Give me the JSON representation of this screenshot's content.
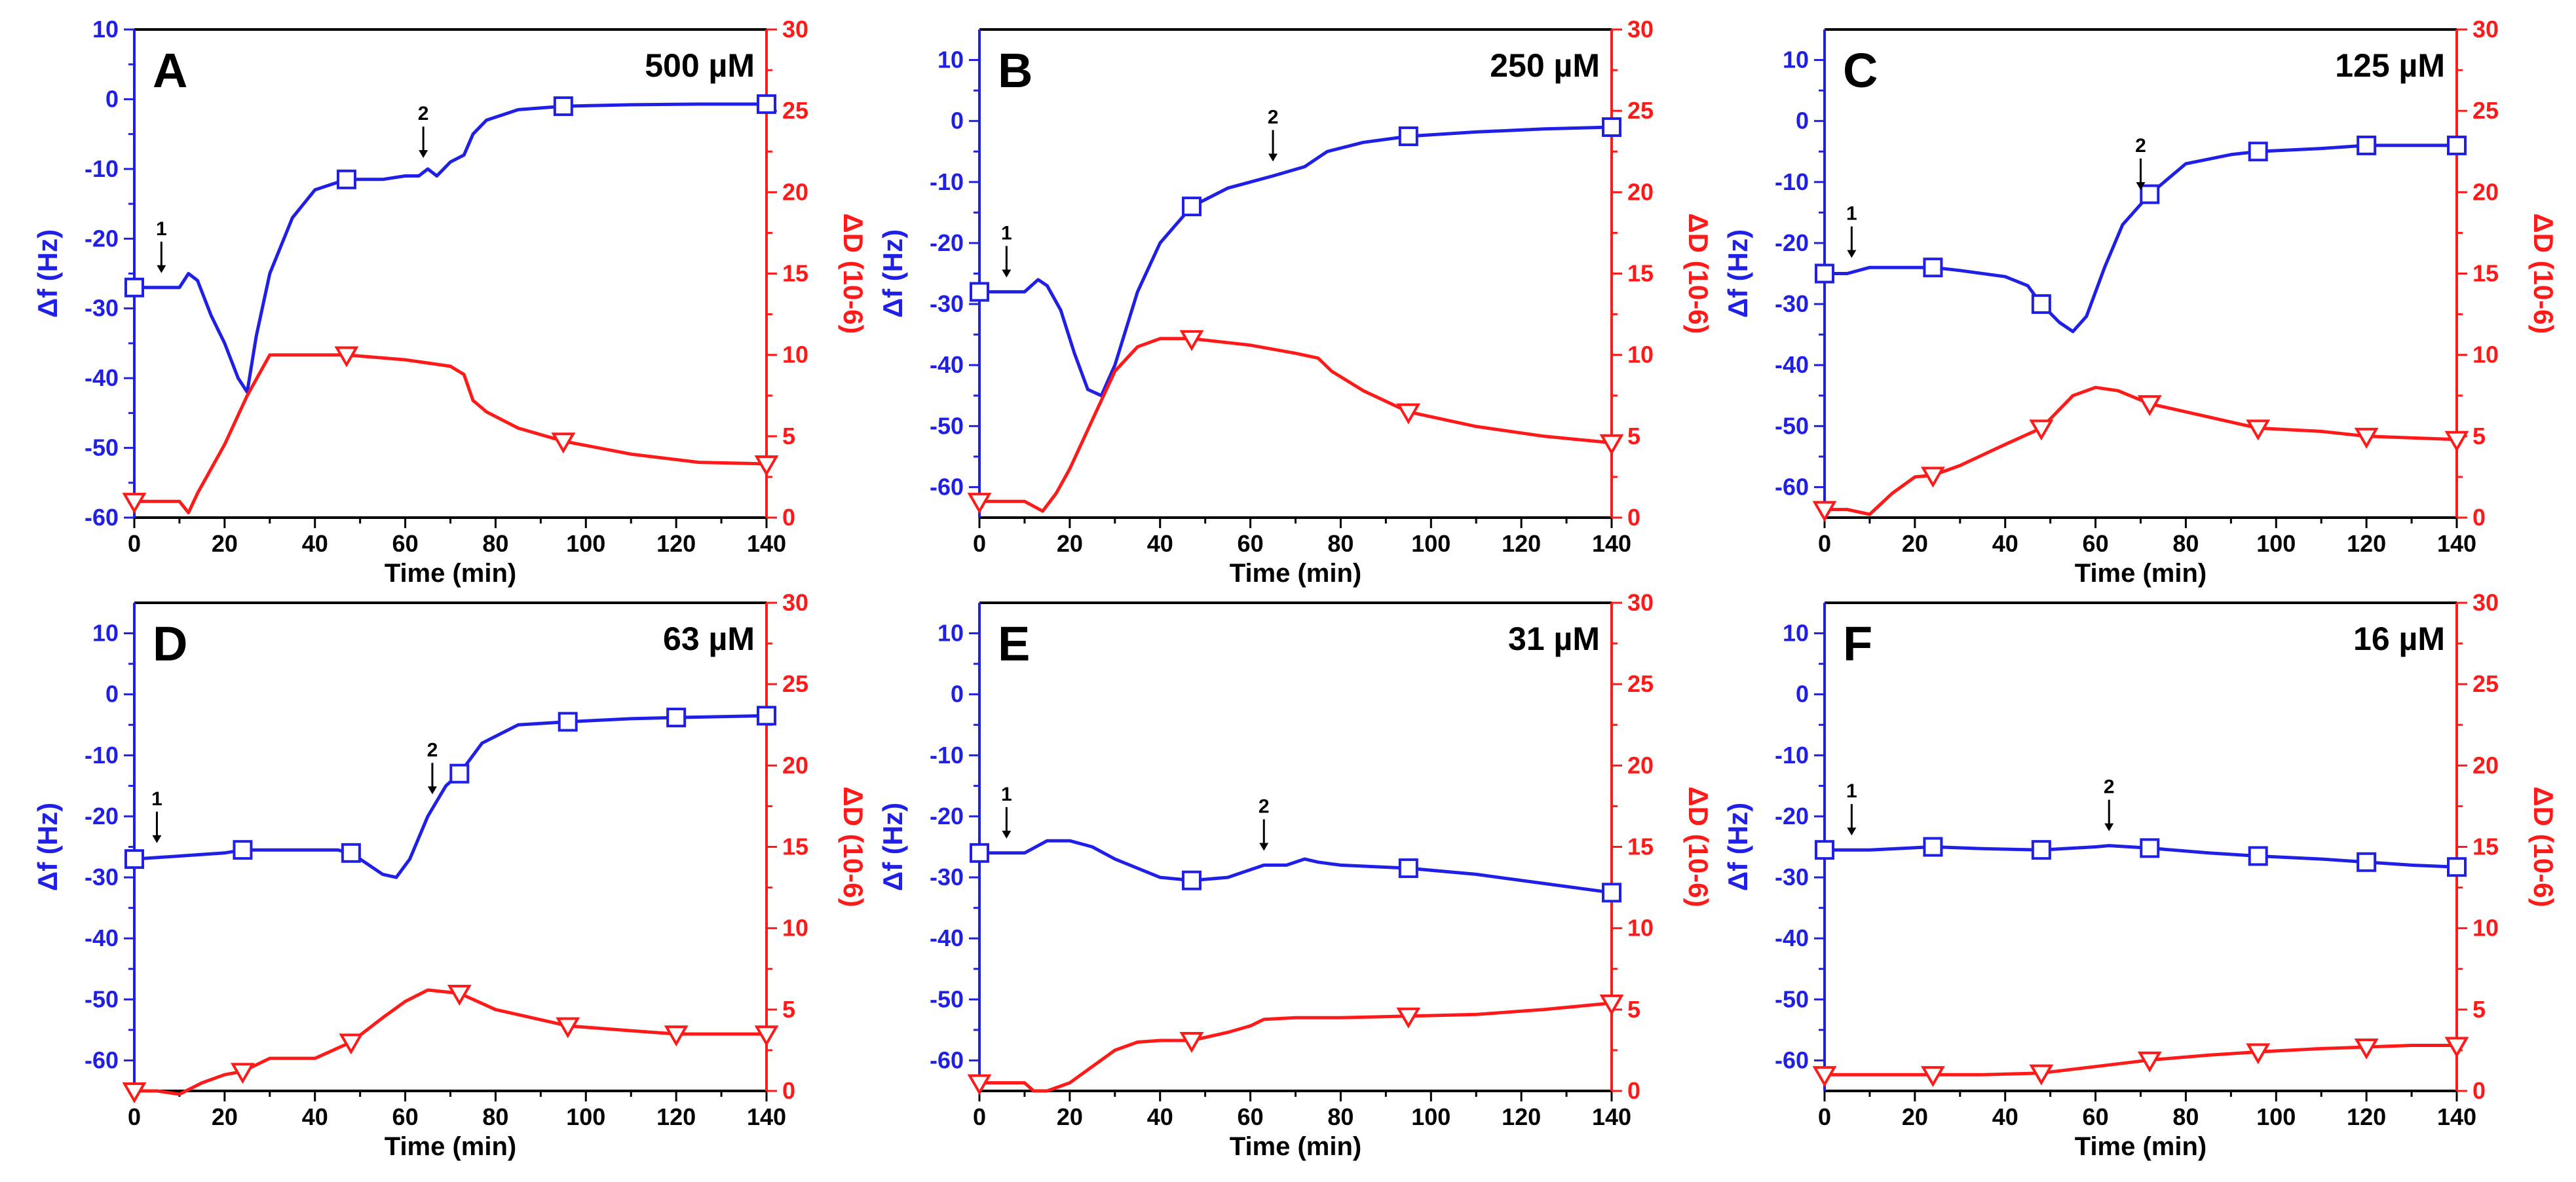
{
  "figure": {
    "colors": {
      "frequency": "#1f1fe6",
      "dissipation": "#ff1a1a",
      "axis": "#000000"
    },
    "x_label": "Time (min)",
    "y_left_label": "Δf (Hz)",
    "y_right_label": "ΔD (10-6)"
  },
  "chart_data": [
    {
      "type": "line",
      "panel": "A",
      "title": "500 µM",
      "xlabel": "Time (min)",
      "ylabel": "Δf (Hz)",
      "y2label": "ΔD (10-6)",
      "xlim": [
        0,
        140
      ],
      "ylim": [
        -60,
        10
      ],
      "y2lim": [
        0,
        30
      ],
      "xticks": [
        "0",
        "20",
        "40",
        "60",
        "80",
        "100",
        "120",
        "140"
      ],
      "yticks": [
        "10",
        "0",
        "-10",
        "-20",
        "-30",
        "-40",
        "-50",
        "-60"
      ],
      "y2ticks": [
        "30",
        "25",
        "20",
        "15",
        "10",
        "5",
        "0"
      ],
      "annotations": [
        {
          "label": "1",
          "x": 6
        },
        {
          "label": "2",
          "x": 64
        }
      ],
      "series": [
        {
          "name": "Δf",
          "axis": "left",
          "marker": "square",
          "x": [
            0,
            5,
            10,
            12,
            14,
            17,
            20,
            23,
            25,
            27,
            30,
            35,
            40,
            47,
            55,
            60,
            63,
            65,
            67,
            70,
            73,
            75,
            78,
            85,
            95,
            110,
            125,
            140
          ],
          "y": [
            -27,
            -27,
            -27,
            -25,
            -26,
            -31,
            -35,
            -40,
            -42,
            -34,
            -25,
            -17,
            -13,
            -11.5,
            -11.5,
            -11,
            -11,
            -10,
            -11,
            -9,
            -8,
            -5,
            -3,
            -1.5,
            -1,
            -0.8,
            -0.7,
            -0.7
          ],
          "markers_x": [
            0,
            47,
            95,
            140
          ]
        },
        {
          "name": "ΔD",
          "axis": "right",
          "marker": "triangle-down",
          "x": [
            0,
            5,
            10,
            12,
            14,
            17,
            20,
            25,
            30,
            35,
            47,
            60,
            70,
            73,
            75,
            78,
            85,
            95,
            110,
            125,
            140
          ],
          "y": [
            1,
            1,
            1,
            0.3,
            1.5,
            3,
            4.5,
            7.5,
            10,
            10,
            10,
            9.7,
            9.3,
            8.8,
            7.2,
            6.5,
            5.5,
            4.7,
            3.9,
            3.4,
            3.3
          ],
          "markers_x": [
            0,
            47,
            95,
            140
          ]
        }
      ]
    },
    {
      "type": "line",
      "panel": "B",
      "title": "250 µM",
      "xlabel": "Time (min)",
      "ylabel": "Δf (Hz)",
      "y2label": "ΔD (10-6)",
      "xlim": [
        0,
        140
      ],
      "ylim": [
        -65,
        15
      ],
      "y2lim": [
        0,
        30
      ],
      "xticks": [
        "0",
        "20",
        "40",
        "60",
        "80",
        "100",
        "120",
        "140"
      ],
      "yticks": [
        "10",
        "0",
        "-10",
        "-20",
        "-30",
        "-40",
        "-50",
        "-60"
      ],
      "y2ticks": [
        "30",
        "25",
        "20",
        "15",
        "10",
        "5",
        "0"
      ],
      "annotations": [
        {
          "label": "1",
          "x": 6
        },
        {
          "label": "2",
          "x": 65
        }
      ],
      "series": [
        {
          "name": "Δf",
          "axis": "left",
          "marker": "square",
          "x": [
            0,
            5,
            10,
            13,
            15,
            18,
            21,
            24,
            27,
            30,
            35,
            40,
            47,
            55,
            65,
            72,
            77,
            85,
            95,
            110,
            125,
            140
          ],
          "y": [
            -28,
            -28,
            -28,
            -26,
            -27,
            -31,
            -38,
            -44,
            -45,
            -40,
            -28,
            -20,
            -14,
            -11,
            -9,
            -7.5,
            -5,
            -3.5,
            -2.5,
            -1.8,
            -1.3,
            -1
          ],
          "markers_x": [
            0,
            47,
            95,
            140
          ]
        },
        {
          "name": "ΔD",
          "axis": "right",
          "marker": "triangle-down",
          "x": [
            0,
            5,
            10,
            14,
            17,
            20,
            25,
            30,
            35,
            40,
            47,
            60,
            70,
            75,
            78,
            85,
            95,
            110,
            125,
            140
          ],
          "y": [
            1,
            1,
            1,
            0.4,
            1.5,
            3,
            6,
            9,
            10.5,
            11,
            11,
            10.6,
            10.1,
            9.8,
            9,
            7.8,
            6.5,
            5.6,
            5,
            4.6
          ],
          "markers_x": [
            0,
            47,
            95,
            140
          ]
        }
      ]
    },
    {
      "type": "line",
      "panel": "C",
      "title": "125 µM",
      "xlabel": "Time (min)",
      "ylabel": "Δf (Hz)",
      "y2label": "ΔD (10-6)",
      "xlim": [
        0,
        140
      ],
      "ylim": [
        -65,
        15
      ],
      "y2lim": [
        0,
        30
      ],
      "xticks": [
        "0",
        "20",
        "40",
        "60",
        "80",
        "100",
        "120",
        "140"
      ],
      "yticks": [
        "10",
        "0",
        "-10",
        "-20",
        "-30",
        "-40",
        "-50",
        "-60"
      ],
      "y2ticks": [
        "30",
        "25",
        "20",
        "15",
        "10",
        "5",
        "0"
      ],
      "annotations": [
        {
          "label": "1",
          "x": 6
        },
        {
          "label": "2",
          "x": 70
        }
      ],
      "series": [
        {
          "name": "Δf",
          "axis": "left",
          "marker": "square",
          "x": [
            0,
            5,
            10,
            20,
            24,
            30,
            40,
            45,
            48,
            52,
            55,
            58,
            62,
            66,
            72,
            80,
            90,
            96,
            110,
            120,
            130,
            140
          ],
          "y": [
            -25,
            -25,
            -24,
            -24,
            -24,
            -24.5,
            -25.5,
            -27,
            -30,
            -33,
            -34.5,
            -32,
            -24,
            -17,
            -12,
            -7,
            -5.5,
            -5,
            -4.5,
            -4,
            -4,
            -4
          ],
          "markers_x": [
            0,
            24,
            48,
            72,
            96,
            120,
            140
          ]
        },
        {
          "name": "ΔD",
          "axis": "right",
          "marker": "triangle-down",
          "x": [
            0,
            5,
            10,
            15,
            20,
            24,
            30,
            40,
            48,
            55,
            60,
            65,
            72,
            80,
            96,
            110,
            120,
            140
          ],
          "y": [
            0.5,
            0.5,
            0.2,
            1.5,
            2.5,
            2.6,
            3.2,
            4.5,
            5.5,
            7.5,
            8,
            7.8,
            7,
            6.5,
            5.5,
            5.3,
            5,
            4.8
          ],
          "markers_x": [
            0,
            24,
            48,
            72,
            96,
            120,
            140
          ]
        }
      ]
    },
    {
      "type": "line",
      "panel": "D",
      "title": "63 µM",
      "xlabel": "Time (min)",
      "ylabel": "Δf (Hz)",
      "y2label": "ΔD (10-6)",
      "xlim": [
        0,
        140
      ],
      "ylim": [
        -65,
        15
      ],
      "y2lim": [
        0,
        30
      ],
      "xticks": [
        "0",
        "20",
        "40",
        "60",
        "80",
        "100",
        "120",
        "140"
      ],
      "yticks": [
        "10",
        "0",
        "-10",
        "-20",
        "-30",
        "-40",
        "-50",
        "-60"
      ],
      "y2ticks": [
        "30",
        "25",
        "20",
        "15",
        "10",
        "5",
        "0"
      ],
      "annotations": [
        {
          "label": "1",
          "x": 5
        },
        {
          "label": "2",
          "x": 66
        }
      ],
      "series": [
        {
          "name": "Δf",
          "axis": "left",
          "marker": "square",
          "x": [
            0,
            10,
            20,
            24,
            35,
            45,
            48,
            52,
            55,
            58,
            61,
            65,
            69,
            72,
            77,
            85,
            96,
            110,
            120,
            140
          ],
          "y": [
            -27,
            -26.5,
            -26,
            -25.5,
            -25.5,
            -25.5,
            -26,
            -28,
            -29.5,
            -30,
            -27,
            -20,
            -15,
            -13,
            -8,
            -5,
            -4.5,
            -4,
            -3.8,
            -3.5
          ],
          "markers_x": [
            0,
            24,
            48,
            72,
            96,
            120,
            140
          ]
        },
        {
          "name": "ΔD",
          "axis": "right",
          "marker": "triangle-down",
          "x": [
            0,
            5,
            10,
            15,
            20,
            24,
            30,
            40,
            48,
            55,
            60,
            65,
            72,
            80,
            96,
            110,
            120,
            140
          ],
          "y": [
            0,
            0,
            -0.2,
            0.5,
            1,
            1.2,
            2,
            2,
            3,
            4.5,
            5.5,
            6.2,
            6,
            5,
            4,
            3.7,
            3.5,
            3.5
          ],
          "markers_x": [
            0,
            24,
            48,
            72,
            96,
            120,
            140
          ]
        }
      ]
    },
    {
      "type": "line",
      "panel": "E",
      "title": "31 µM",
      "xlabel": "Time (min)",
      "ylabel": "Δf (Hz)",
      "y2label": "ΔD (10-6)",
      "xlim": [
        0,
        140
      ],
      "ylim": [
        -65,
        15
      ],
      "y2lim": [
        0,
        30
      ],
      "xticks": [
        "0",
        "20",
        "40",
        "60",
        "80",
        "100",
        "120",
        "140"
      ],
      "yticks": [
        "10",
        "0",
        "-10",
        "-20",
        "-30",
        "-40",
        "-50",
        "-60"
      ],
      "y2ticks": [
        "30",
        "25",
        "20",
        "15",
        "10",
        "5",
        "0"
      ],
      "annotations": [
        {
          "label": "1",
          "x": 6
        },
        {
          "label": "2",
          "x": 63
        }
      ],
      "series": [
        {
          "name": "Δf",
          "axis": "left",
          "marker": "square",
          "x": [
            0,
            5,
            10,
            15,
            20,
            25,
            30,
            40,
            47,
            55,
            63,
            68,
            72,
            75,
            80,
            95,
            110,
            125,
            140
          ],
          "y": [
            -26,
            -26,
            -26,
            -24,
            -24,
            -25,
            -27,
            -30,
            -30.5,
            -30,
            -28,
            -28,
            -27,
            -27.5,
            -28,
            -28.5,
            -29.5,
            -31,
            -32.5
          ],
          "markers_x": [
            0,
            47,
            95,
            140
          ]
        },
        {
          "name": "ΔD",
          "axis": "right",
          "marker": "triangle-down",
          "x": [
            0,
            5,
            10,
            12,
            15,
            20,
            25,
            30,
            35,
            40,
            47,
            55,
            60,
            63,
            70,
            80,
            95,
            110,
            125,
            140
          ],
          "y": [
            0.5,
            0.5,
            0.5,
            0,
            0,
            0.5,
            1.5,
            2.5,
            3,
            3.1,
            3.1,
            3.6,
            4,
            4.4,
            4.5,
            4.5,
            4.6,
            4.7,
            5,
            5.4
          ],
          "markers_x": [
            0,
            47,
            95,
            140
          ]
        }
      ]
    },
    {
      "type": "line",
      "panel": "F",
      "title": "16 µM",
      "xlabel": "Time (min)",
      "ylabel": "Δf (Hz)",
      "y2label": "ΔD (10-6)",
      "xlim": [
        0,
        140
      ],
      "ylim": [
        -65,
        15
      ],
      "y2lim": [
        0,
        30
      ],
      "xticks": [
        "0",
        "20",
        "40",
        "60",
        "80",
        "100",
        "120",
        "140"
      ],
      "yticks": [
        "10",
        "0",
        "-10",
        "-20",
        "-30",
        "-40",
        "-50",
        "-60"
      ],
      "y2ticks": [
        "30",
        "25",
        "20",
        "15",
        "10",
        "5",
        "0"
      ],
      "annotations": [
        {
          "label": "1",
          "x": 6
        },
        {
          "label": "2",
          "x": 63
        }
      ],
      "series": [
        {
          "name": "Δf",
          "axis": "left",
          "marker": "square",
          "x": [
            0,
            10,
            24,
            35,
            48,
            60,
            63,
            72,
            85,
            96,
            110,
            120,
            130,
            140
          ],
          "y": [
            -25.5,
            -25.5,
            -25,
            -25.3,
            -25.5,
            -25,
            -24.8,
            -25.2,
            -26,
            -26.5,
            -27,
            -27.5,
            -28,
            -28.3
          ],
          "markers_x": [
            0,
            24,
            48,
            72,
            96,
            120,
            140
          ]
        },
        {
          "name": "ΔD",
          "axis": "right",
          "marker": "triangle-down",
          "x": [
            0,
            10,
            24,
            35,
            48,
            60,
            72,
            85,
            96,
            110,
            120,
            130,
            140
          ],
          "y": [
            1,
            1,
            1,
            1,
            1.1,
            1.5,
            1.9,
            2.2,
            2.4,
            2.6,
            2.7,
            2.8,
            2.8
          ],
          "markers_x": [
            0,
            24,
            48,
            72,
            96,
            120,
            140
          ]
        }
      ]
    }
  ]
}
